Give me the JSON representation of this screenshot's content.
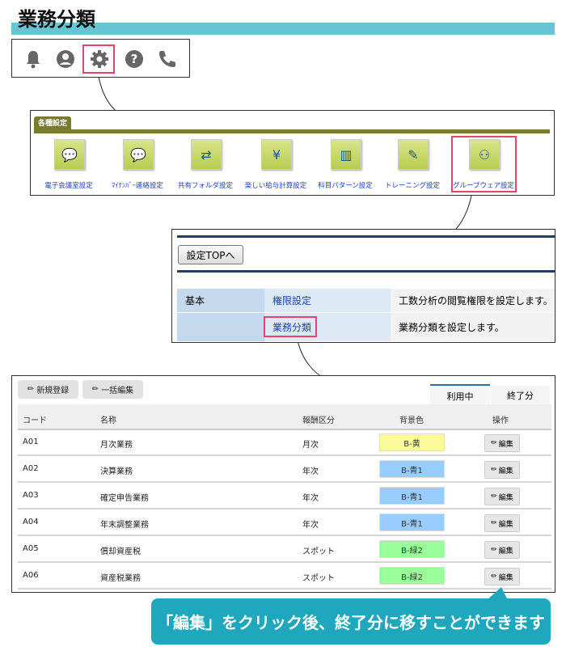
{
  "title": "業務分類",
  "colors": {
    "teal": "#66c4d4",
    "olive": "#7a7a30",
    "highlight": "#e8446a",
    "callout": "#1fa8bd",
    "yellow": "#fbfb9c",
    "blue": "#99ccff",
    "green": "#99ff99"
  },
  "toolbar_icons": [
    "bell-icon",
    "user-icon",
    "gear-icon",
    "help-icon",
    "phone-icon"
  ],
  "settings": {
    "tab": "各種設定",
    "items": [
      {
        "label": "電子会議室設定",
        "icon": "chat-icon"
      },
      {
        "label": "ﾏｲﾅﾝﾊﾞｰ連絡設定",
        "icon": "chat-icon"
      },
      {
        "label": "共有フォルダ設定",
        "icon": "share-folder-icon"
      },
      {
        "label": "楽しい給与計算設定",
        "icon": "payroll-icon"
      },
      {
        "label": "科目パターン設定",
        "icon": "chart-icon"
      },
      {
        "label": "トレーニング設定",
        "icon": "note-edit-icon"
      },
      {
        "label": "グループウェア設定",
        "icon": "group-icon"
      }
    ]
  },
  "panel": {
    "top_button": "設定TOPへ",
    "rows": [
      {
        "category": "基本",
        "link": "権限設定",
        "desc": "工数分析の閲覧権限を設定します。"
      },
      {
        "category": "",
        "link": "業務分類",
        "desc": "業務分類を設定します。"
      }
    ]
  },
  "list": {
    "new_button": "新規登録",
    "bulk_button": "一括編集",
    "tabs": [
      "利用中",
      "終了分"
    ],
    "headers": [
      "コード",
      "名称",
      "報酬区分",
      "背景色",
      "操作"
    ],
    "edit_label": "編集",
    "rows": [
      {
        "code": "A01",
        "name": "月次業務",
        "type": "月次",
        "color_label": "B-黄",
        "color": "#fbfb9c"
      },
      {
        "code": "A02",
        "name": "決算業務",
        "type": "年次",
        "color_label": "B-青1",
        "color": "#99ccff"
      },
      {
        "code": "A03",
        "name": "確定申告業務",
        "type": "年次",
        "color_label": "B-青1",
        "color": "#99ccff"
      },
      {
        "code": "A04",
        "name": "年末調整業務",
        "type": "年次",
        "color_label": "B-青1",
        "color": "#99ccff"
      },
      {
        "code": "A05",
        "name": "償却資産税",
        "type": "スポット",
        "color_label": "B-緑2",
        "color": "#99ff99"
      },
      {
        "code": "A06",
        "name": "資産税業務",
        "type": "スポット",
        "color_label": "B-緑2",
        "color": "#99ff99"
      }
    ]
  },
  "callout": "「編集」をクリック後、終了分に移すことができます"
}
